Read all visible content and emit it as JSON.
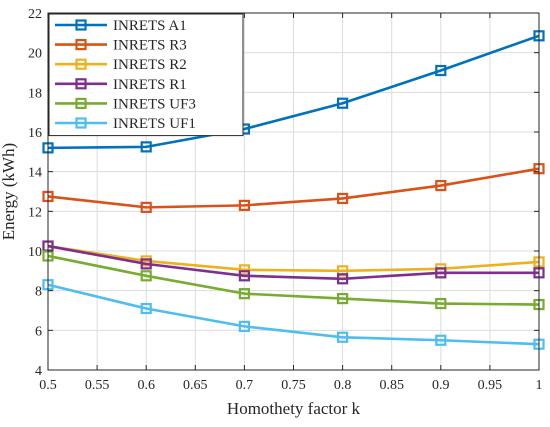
{
  "chart_data": {
    "type": "line",
    "title": "",
    "xlabel": "Homothety factor k",
    "ylabel": "Energy (kWh)",
    "x": [
      0.5,
      0.6,
      0.7,
      0.8,
      0.9,
      1.0
    ],
    "xlim": [
      0.5,
      1.0
    ],
    "ylim": [
      4,
      22
    ],
    "xticks": [
      0.5,
      0.55,
      0.6,
      0.65,
      0.7,
      0.75,
      0.8,
      0.85,
      0.9,
      0.95,
      1.0
    ],
    "xtick_labels": [
      "0.5",
      "0.55",
      "0.6",
      "0.65",
      "0.7",
      "0.75",
      "0.8",
      "0.85",
      "0.9",
      "0.95",
      "1"
    ],
    "yticks": [
      4,
      6,
      8,
      10,
      12,
      14,
      16,
      18,
      20,
      22
    ],
    "ytick_labels": [
      "4",
      "6",
      "8",
      "10",
      "12",
      "14",
      "16",
      "18",
      "20",
      "22"
    ],
    "grid": true,
    "legend_position": "top-left",
    "marker": "square",
    "series": [
      {
        "name": "INRETS A1",
        "color": "#0072BD",
        "values": [
          15.2,
          15.25,
          16.15,
          17.45,
          19.1,
          20.85
        ]
      },
      {
        "name": "INRETS R3",
        "color": "#D95319",
        "values": [
          12.75,
          12.2,
          12.3,
          12.65,
          13.3,
          14.15
        ]
      },
      {
        "name": "INRETS R2",
        "color": "#EDB120",
        "values": [
          10.25,
          9.5,
          9.05,
          9.0,
          9.1,
          9.45
        ]
      },
      {
        "name": "INRETS R1",
        "color": "#7E2F8E",
        "values": [
          10.25,
          9.35,
          8.75,
          8.6,
          8.9,
          8.9
        ]
      },
      {
        "name": "INRETS UF3",
        "color": "#77AC30",
        "values": [
          9.75,
          8.75,
          7.85,
          7.6,
          7.35,
          7.3
        ]
      },
      {
        "name": "INRETS UF1",
        "color": "#4DBEEE",
        "values": [
          8.3,
          7.1,
          6.2,
          5.65,
          5.5,
          5.3
        ]
      }
    ]
  }
}
